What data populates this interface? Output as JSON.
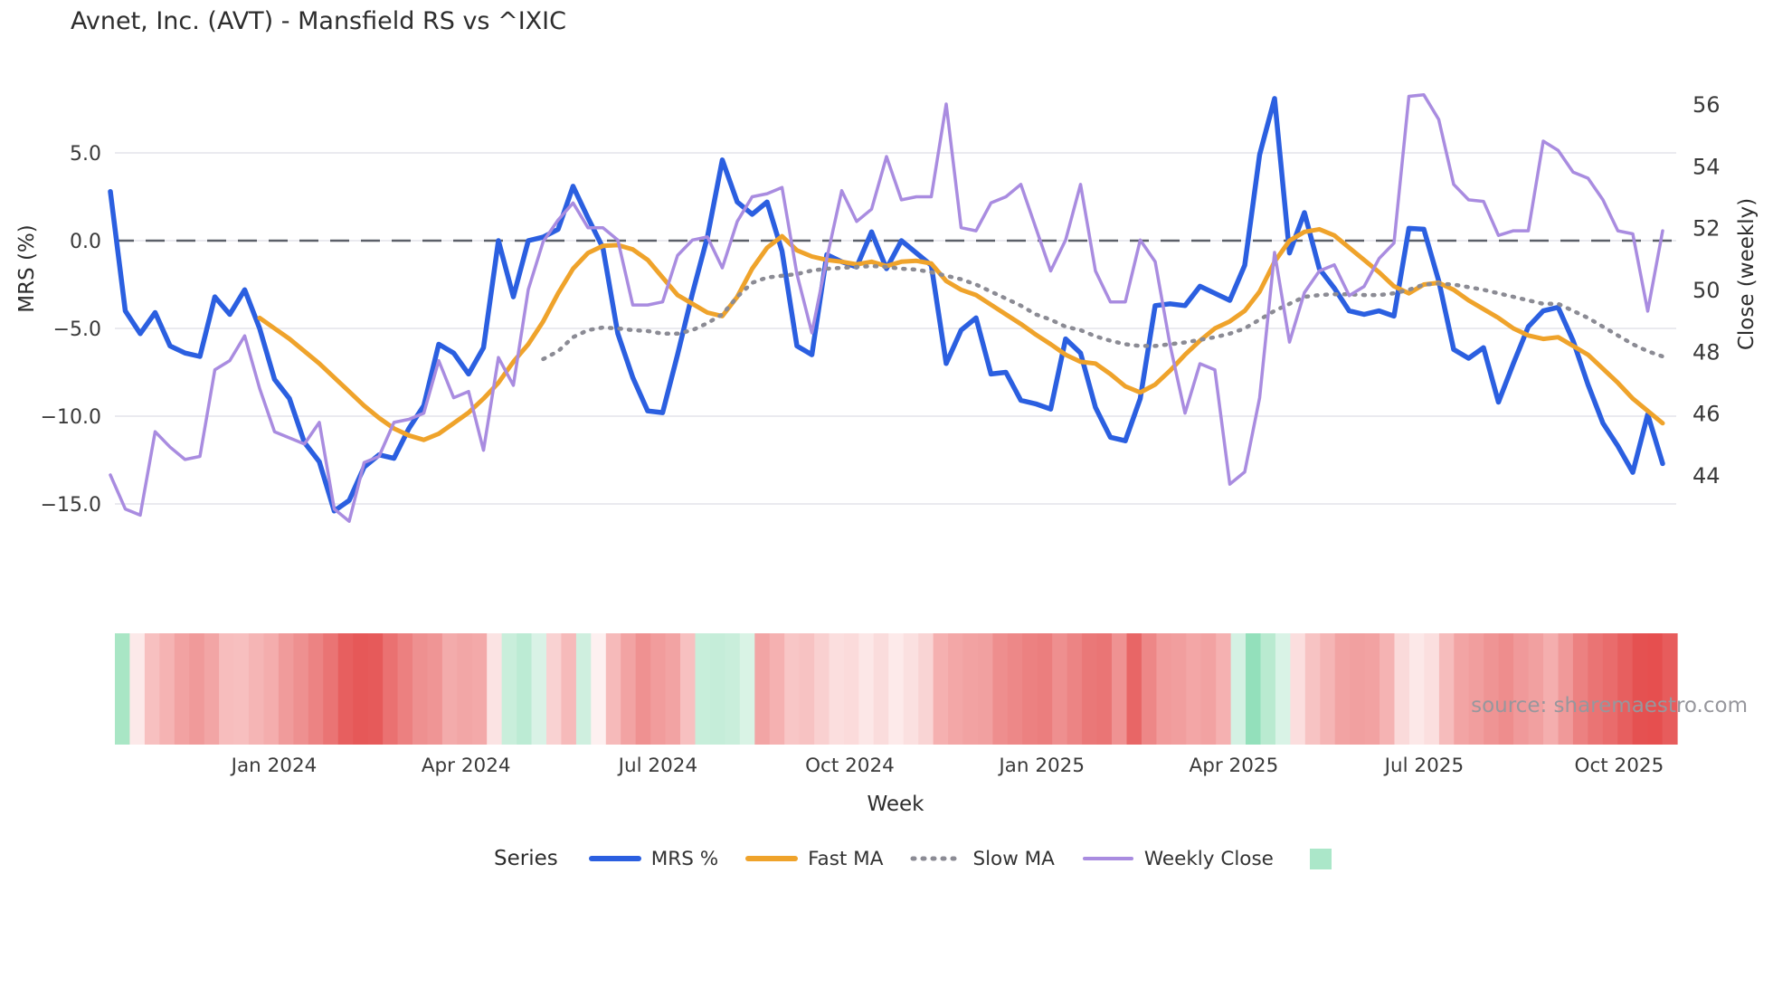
{
  "title": "Avnet, Inc. (AVT) - Mansfield RS vs ^IXIC",
  "watermark": "source: sharemaestro.com",
  "colors": {
    "background": "#ffffff",
    "gridline": "#eaeaef",
    "zero_line": "#5c6069",
    "tick_text": "#3a3a3a",
    "title_text": "#2d2d2d",
    "mrs_blue": "#2b5fe0",
    "fast_ma_orange": "#efa32b",
    "slow_ma_gray": "#8b8b94",
    "weekly_close_purple": "#a98ce0",
    "heatmap_green": "#abe7c9",
    "watermark_gray": "#97979d"
  },
  "axes": {
    "left": {
      "label": "MRS (%)",
      "ticks": [
        "5.0",
        "0.0",
        "−5.0",
        "−10.0",
        "−15.0"
      ],
      "tick_values": [
        5,
        0,
        -5,
        -10,
        -15
      ]
    },
    "right": {
      "label": "Close (weekly)",
      "ticks": [
        "56",
        "54",
        "52",
        "50",
        "48",
        "46",
        "44"
      ],
      "tick_values": [
        56,
        54,
        52,
        50,
        48,
        46,
        44
      ]
    },
    "x": {
      "label": "Week",
      "ticks": [
        "Jan 2024",
        "Apr 2024",
        "Jul 2024",
        "Oct 2024",
        "Jan 2025",
        "Apr 2025",
        "Jul 2025",
        "Oct 2025"
      ],
      "tick_weeks": [
        10.7,
        23.6,
        36.5,
        49.4,
        62.3,
        75.2,
        88.0,
        101.1
      ]
    }
  },
  "legend": {
    "title": "Series",
    "items": [
      {
        "label": "MRS %",
        "color": "#2b5fe0",
        "style": "solid"
      },
      {
        "label": "Fast MA",
        "color": "#efa32b",
        "style": "solid"
      },
      {
        "label": "Slow MA",
        "color": "#8b8b94",
        "style": "dotted"
      },
      {
        "label": "Weekly Close",
        "color": "#a98ce0",
        "style": "solid"
      }
    ],
    "heatmap_swatch_color": "#abe7c9"
  },
  "chart_data": {
    "type": "line",
    "title": "Avnet, Inc. (AVT) - Mansfield RS vs ^IXIC",
    "xlabel": "Week",
    "ylabel_left": "MRS (%)",
    "ylabel_right": "Close (weekly)",
    "x_unit": "week_index",
    "n_points": 105,
    "x_range_note": "weekly points, first point ≈ Nov 2023, last point ≈ Nov 2025",
    "ylim_left": [
      -18.5,
      9.8
    ],
    "ylim_right": [
      41.0,
      57.2
    ],
    "grid": "horizontal-left-axis-only",
    "zero_reference_line": 0,
    "legend_position": "bottom-center",
    "series": [
      {
        "name": "MRS %",
        "axis": "left",
        "color": "#2b5fe0",
        "style": "solid",
        "width": 5.5,
        "values": [
          2.8,
          -4.0,
          -5.3,
          -4.1,
          -6.0,
          -6.4,
          -6.6,
          -3.2,
          -4.2,
          -2.8,
          -5.0,
          -7.9,
          -9.0,
          -11.5,
          -12.6,
          -15.4,
          -14.8,
          -12.9,
          -12.2,
          -12.4,
          -10.7,
          -9.4,
          -5.9,
          -6.4,
          -7.6,
          -6.1,
          0.0,
          -3.2,
          0.0,
          0.2,
          0.65,
          3.1,
          1.3,
          -0.4,
          -5.3,
          -7.8,
          -9.7,
          -9.8,
          -6.5,
          -3.0,
          0.2,
          4.6,
          2.2,
          1.5,
          2.2,
          -0.6,
          -6.0,
          -6.5,
          -0.8,
          -1.2,
          -1.5,
          0.5,
          -1.6,
          0.0,
          -0.7,
          -1.4,
          -7.0,
          -5.1,
          -4.4,
          -7.6,
          -7.5,
          -9.1,
          -9.3,
          -9.6,
          -5.6,
          -6.4,
          -9.5,
          -11.2,
          -11.4,
          -9.0,
          -3.7,
          -3.6,
          -3.7,
          -2.6,
          -3.0,
          -3.4,
          -1.4,
          4.9,
          8.1,
          -0.7,
          1.6,
          -1.6,
          -2.7,
          -4.0,
          -4.2,
          -4.0,
          -4.3,
          0.7,
          0.65,
          -2.3,
          -6.2,
          -6.7,
          -6.1,
          -9.2,
          -7.0,
          -4.9,
          -4.0,
          -3.8,
          -5.7,
          -8.2,
          -10.4,
          -11.7,
          -13.2,
          -9.9,
          -12.7
        ]
      },
      {
        "name": "Fast MA",
        "axis": "left",
        "color": "#efa32b",
        "style": "solid",
        "width": 5,
        "values": [
          null,
          null,
          null,
          null,
          null,
          null,
          null,
          null,
          null,
          null,
          -4.4,
          -5.0,
          -5.6,
          -6.3,
          -7.0,
          -7.8,
          -8.6,
          -9.4,
          -10.1,
          -10.7,
          -11.1,
          -11.35,
          -11.0,
          -10.4,
          -9.8,
          -9.0,
          -8.1,
          -6.9,
          -5.9,
          -4.6,
          -3.0,
          -1.6,
          -0.7,
          -0.3,
          -0.25,
          -0.5,
          -1.1,
          -2.1,
          -3.1,
          -3.6,
          -4.1,
          -4.3,
          -3.2,
          -1.6,
          -0.4,
          0.25,
          -0.55,
          -0.9,
          -1.1,
          -1.2,
          -1.35,
          -1.2,
          -1.45,
          -1.2,
          -1.15,
          -1.3,
          -2.3,
          -2.8,
          -3.1,
          -3.65,
          -4.2,
          -4.75,
          -5.35,
          -5.9,
          -6.5,
          -6.9,
          -7.0,
          -7.6,
          -8.3,
          -8.65,
          -8.2,
          -7.4,
          -6.5,
          -5.7,
          -5.0,
          -4.6,
          -4.0,
          -2.9,
          -1.2,
          0.0,
          0.5,
          0.65,
          0.3,
          -0.4,
          -1.1,
          -1.8,
          -2.6,
          -3.0,
          -2.5,
          -2.4,
          -2.8,
          -3.4,
          -3.9,
          -4.4,
          -5.0,
          -5.4,
          -5.6,
          -5.5,
          -6.0,
          -6.5,
          -7.3,
          -8.1,
          -9.0,
          -9.7,
          -10.4
        ]
      },
      {
        "name": "Slow MA",
        "axis": "left",
        "color": "#8b8b94",
        "style": "dotted",
        "width": 4.5,
        "values": [
          null,
          null,
          null,
          null,
          null,
          null,
          null,
          null,
          null,
          null,
          null,
          null,
          null,
          null,
          null,
          null,
          null,
          null,
          null,
          null,
          null,
          null,
          null,
          null,
          null,
          null,
          null,
          null,
          null,
          -6.75,
          -6.3,
          -5.5,
          -5.1,
          -4.95,
          -5.0,
          -5.1,
          -5.15,
          -5.3,
          -5.3,
          -5.1,
          -4.7,
          -4.2,
          -3.2,
          -2.4,
          -2.1,
          -2.0,
          -1.9,
          -1.7,
          -1.6,
          -1.55,
          -1.5,
          -1.45,
          -1.5,
          -1.6,
          -1.65,
          -1.8,
          -2.0,
          -2.2,
          -2.5,
          -2.9,
          -3.3,
          -3.7,
          -4.2,
          -4.5,
          -4.9,
          -5.1,
          -5.45,
          -5.7,
          -5.9,
          -6.0,
          -6.0,
          -5.9,
          -5.8,
          -5.65,
          -5.5,
          -5.3,
          -5.0,
          -4.5,
          -4.0,
          -3.6,
          -3.2,
          -3.1,
          -3.05,
          -3.05,
          -3.1,
          -3.1,
          -3.0,
          -2.8,
          -2.5,
          -2.45,
          -2.5,
          -2.65,
          -2.8,
          -3.0,
          -3.2,
          -3.4,
          -3.6,
          -3.6,
          -4.0,
          -4.4,
          -4.9,
          -5.4,
          -5.9,
          -6.3,
          -6.6
        ]
      },
      {
        "name": "Weekly Close",
        "axis": "right",
        "color": "#a98ce0",
        "style": "solid",
        "width": 3.5,
        "values": [
          44.0,
          42.9,
          42.7,
          45.4,
          44.9,
          44.5,
          44.6,
          47.4,
          47.7,
          48.5,
          46.8,
          45.4,
          45.2,
          45.0,
          45.7,
          42.9,
          42.5,
          44.4,
          44.6,
          45.7,
          45.8,
          46.0,
          47.7,
          46.5,
          46.7,
          44.8,
          47.8,
          46.9,
          50.0,
          51.55,
          52.25,
          52.8,
          52.0,
          52.0,
          51.6,
          49.5,
          49.5,
          49.6,
          51.1,
          51.6,
          51.7,
          50.7,
          52.2,
          53.0,
          53.1,
          53.3,
          50.5,
          48.6,
          51.0,
          53.2,
          52.2,
          52.6,
          54.3,
          52.9,
          53.0,
          53.0,
          56.0,
          52.0,
          51.9,
          52.8,
          53.0,
          53.4,
          52.0,
          50.6,
          51.6,
          53.4,
          50.6,
          49.6,
          49.6,
          51.6,
          50.9,
          48.2,
          46.0,
          47.6,
          47.4,
          43.7,
          44.1,
          46.5,
          51.2,
          48.3,
          49.9,
          50.6,
          50.8,
          49.8,
          50.1,
          51.0,
          51.5,
          56.25,
          56.3,
          55.5,
          53.4,
          52.9,
          52.85,
          51.75,
          51.9,
          51.9,
          54.8,
          54.5,
          53.8,
          53.6,
          52.9,
          51.9,
          51.8,
          49.3,
          51.9
        ]
      }
    ],
    "heatmap_strip": {
      "description": "weekly red/green intensity strip rendered below the plot",
      "cell_colors": [
        "#a9e6c5",
        "#fce9e9",
        "#f7c0c0",
        "#f5b3b3",
        "#f2a2a2",
        "#f09a9a",
        "#f2a5a5",
        "#f7bdbd",
        "#f7bfbf",
        "#f5b5b5",
        "#f4adad",
        "#f09b9b",
        "#ee9090",
        "#ec8383",
        "#ea7474",
        "#e75f5f",
        "#e65858",
        "#e65a5a",
        "#ea7171",
        "#ec8080",
        "#ee9090",
        "#ef9595",
        "#f3abab",
        "#f2a6a6",
        "#f3a9a9",
        "#fbe3e3",
        "#c9eedb",
        "#bcebd4",
        "#d9f2e6",
        "#f9d2d2",
        "#f6baba",
        "#cfefdf",
        "#fdf0f0",
        "#f6baba",
        "#f2a3a3",
        "#ef9191",
        "#f19c9c",
        "#f2a3a3",
        "#f7c0c0",
        "#c7eeda",
        "#c5edd9",
        "#c9eedb",
        "#d9f3e5",
        "#f2a5a5",
        "#f5b1b1",
        "#f8c6c6",
        "#f7c2c2",
        "#f9d0d0",
        "#fbdede",
        "#fbdbdb",
        "#fce7e7",
        "#fadcdc",
        "#fdeaea",
        "#fbe0e0",
        "#f9d4d4",
        "#f5b0b0",
        "#f3a7a7",
        "#f2a2a2",
        "#f1a0a0",
        "#ee8e8e",
        "#ed8888",
        "#ec8181",
        "#eb7e7e",
        "#ee8f8f",
        "#ec8484",
        "#ea7878",
        "#ea7575",
        "#ef9292",
        "#e86666",
        "#ed8787",
        "#f19b9b",
        "#f19e9e",
        "#f3a6a6",
        "#f2a2a2",
        "#f5b1b1",
        "#d4f1e3",
        "#93e0bb",
        "#b9ead0",
        "#d9f3e6",
        "#fbdede",
        "#f7c3c3",
        "#f5b5b5",
        "#f2a3a3",
        "#f1a0a0",
        "#f2a2a2",
        "#f5b3b3",
        "#fadada",
        "#fce8e8",
        "#fbdfdf",
        "#f6bcbc",
        "#f2a4a4",
        "#f19e9e",
        "#ef9494",
        "#ee8d8d",
        "#f0999a",
        "#f1a0a0",
        "#f4aeae",
        "#f09999",
        "#ec8181",
        "#ea7474",
        "#e96c6c",
        "#e75f5f",
        "#e55151",
        "#e64f4f",
        "#e75c5c"
      ]
    }
  }
}
